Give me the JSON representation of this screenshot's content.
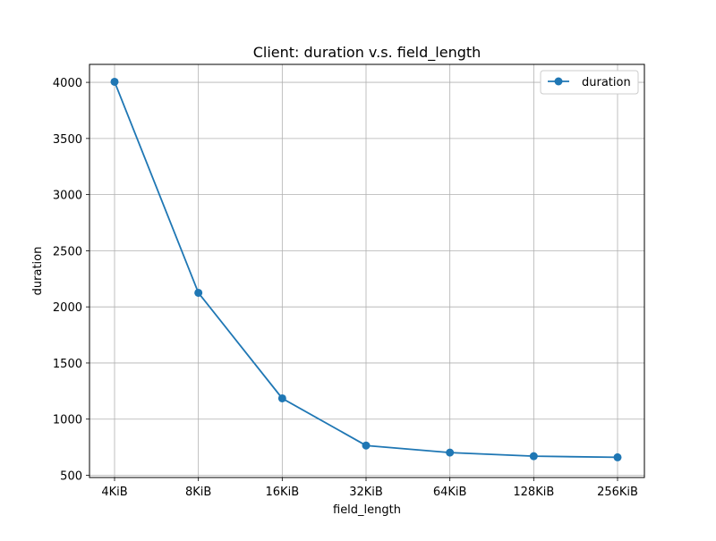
{
  "chart_data": {
    "type": "line",
    "title": "Client: duration v.s. field_length",
    "xlabel": "field_length",
    "ylabel": "duration",
    "categories": [
      "4KiB",
      "8KiB",
      "16KiB",
      "32KiB",
      "64KiB",
      "128KiB",
      "256KiB"
    ],
    "series": [
      {
        "name": "duration",
        "values": [
          4005,
          2125,
          1185,
          765,
          702,
          670,
          660
        ],
        "color": "#1f77b4",
        "marker": "circle"
      }
    ],
    "ylim": [
      480,
      4160
    ],
    "yticks": [
      500,
      1000,
      1500,
      2000,
      2500,
      3000,
      3500,
      4000
    ],
    "grid": true,
    "legend": {
      "position": "top-right",
      "entries": [
        "duration"
      ]
    }
  }
}
